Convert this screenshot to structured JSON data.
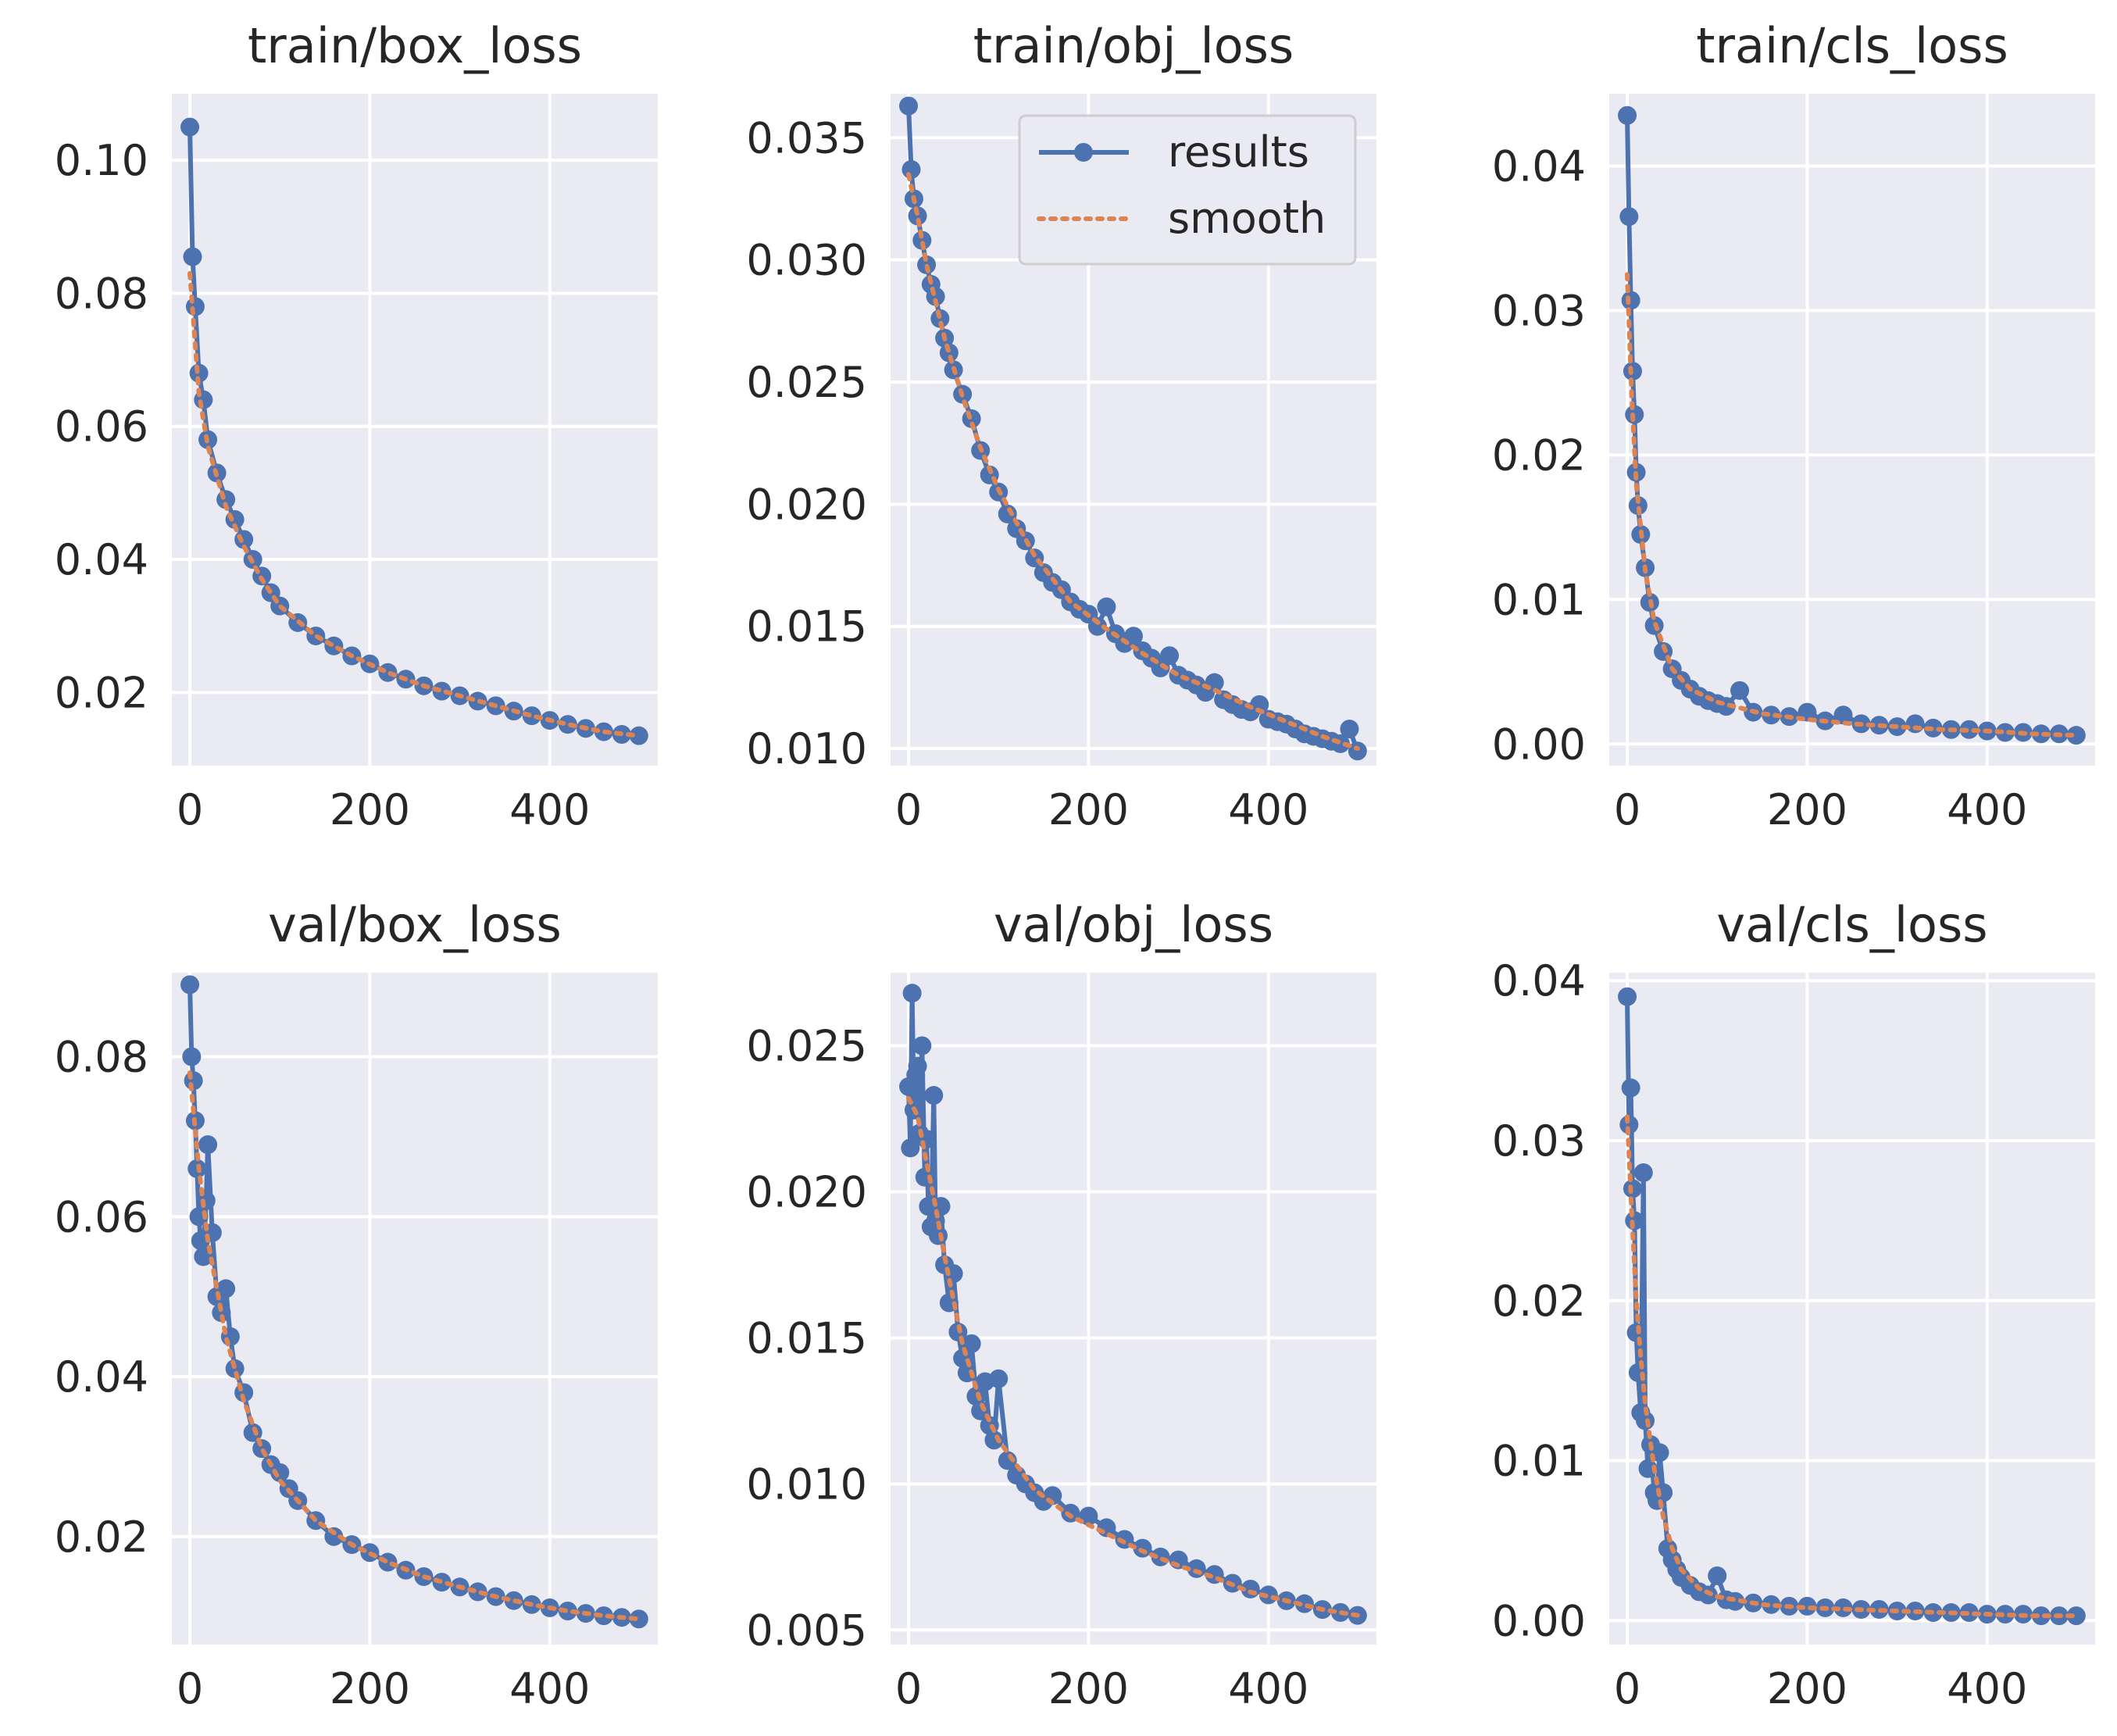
{
  "figure": {
    "colors": {
      "results": "#4c72b0",
      "smooth": "#dd8452",
      "axes_bg": "#eaeaf2",
      "grid": "#ffffff"
    },
    "legend": {
      "entries": [
        "results",
        "smooth"
      ],
      "placement": "upper-right",
      "panel": "train/obj_loss"
    }
  },
  "chart_data": [
    {
      "type": "line",
      "title": "train/box_loss",
      "xlabel": "",
      "ylabel": "",
      "xlim": [
        -20,
        520
      ],
      "ylim": [
        0.009,
        0.11
      ],
      "xticks": [
        0,
        200,
        400
      ],
      "xtick_labels": [
        "0",
        "200",
        "400"
      ],
      "yticks": [
        0.02,
        0.04,
        0.06,
        0.08,
        0.1
      ],
      "ytick_labels": [
        "0.02",
        "0.04",
        "0.06",
        "0.08",
        "0.10"
      ],
      "series": [
        {
          "name": "results",
          "x": [
            0,
            3,
            6,
            10,
            15,
            20,
            30,
            40,
            50,
            60,
            70,
            80,
            90,
            100,
            120,
            140,
            160,
            180,
            200,
            220,
            240,
            260,
            280,
            300,
            320,
            340,
            360,
            380,
            400,
            420,
            440,
            460,
            480,
            499
          ],
          "y": [
            0.105,
            0.0855,
            0.078,
            0.068,
            0.064,
            0.058,
            0.053,
            0.049,
            0.046,
            0.043,
            0.04,
            0.0375,
            0.035,
            0.033,
            0.0305,
            0.0285,
            0.027,
            0.0255,
            0.0243,
            0.023,
            0.022,
            0.021,
            0.0202,
            0.0195,
            0.0187,
            0.018,
            0.0172,
            0.0165,
            0.0158,
            0.0152,
            0.0146,
            0.0141,
            0.0137,
            0.0135
          ]
        },
        {
          "name": "smooth",
          "x": [
            0,
            10,
            20,
            40,
            60,
            80,
            100,
            140,
            180,
            220,
            260,
            300,
            340,
            380,
            420,
            460,
            499
          ],
          "y": [
            0.083,
            0.065,
            0.057,
            0.048,
            0.042,
            0.037,
            0.033,
            0.0285,
            0.0255,
            0.023,
            0.021,
            0.0195,
            0.018,
            0.0165,
            0.0152,
            0.0141,
            0.0135
          ]
        }
      ]
    },
    {
      "type": "line",
      "title": "train/obj_loss",
      "xlabel": "",
      "ylabel": "",
      "xlim": [
        -20,
        520
      ],
      "ylim": [
        0.0093,
        0.0368
      ],
      "xticks": [
        0,
        200,
        400
      ],
      "xtick_labels": [
        "0",
        "200",
        "400"
      ],
      "yticks": [
        0.01,
        0.015,
        0.02,
        0.025,
        0.03,
        0.035
      ],
      "ytick_labels": [
        "0.010",
        "0.015",
        "0.020",
        "0.025",
        "0.030",
        "0.035"
      ],
      "series": [
        {
          "name": "results",
          "x": [
            0,
            3,
            6,
            10,
            15,
            20,
            25,
            30,
            35,
            40,
            45,
            50,
            60,
            70,
            80,
            90,
            100,
            110,
            120,
            130,
            140,
            150,
            160,
            170,
            180,
            190,
            200,
            210,
            220,
            230,
            240,
            250,
            260,
            270,
            280,
            290,
            300,
            310,
            320,
            330,
            340,
            350,
            360,
            370,
            380,
            390,
            400,
            410,
            420,
            430,
            440,
            450,
            460,
            470,
            480,
            490,
            499
          ],
          "y": [
            0.0363,
            0.0337,
            0.0325,
            0.0318,
            0.0308,
            0.0298,
            0.029,
            0.0285,
            0.0276,
            0.0268,
            0.0262,
            0.0255,
            0.0245,
            0.0235,
            0.0222,
            0.0212,
            0.0205,
            0.0196,
            0.019,
            0.0185,
            0.0178,
            0.0172,
            0.0168,
            0.0165,
            0.016,
            0.0157,
            0.0155,
            0.015,
            0.0158,
            0.0147,
            0.0143,
            0.0146,
            0.014,
            0.0137,
            0.0133,
            0.0138,
            0.013,
            0.0128,
            0.0126,
            0.0123,
            0.0127,
            0.012,
            0.0118,
            0.0116,
            0.0115,
            0.0118,
            0.0112,
            0.0111,
            0.011,
            0.0108,
            0.0106,
            0.0105,
            0.0104,
            0.0103,
            0.0102,
            0.0108,
            0.0099
          ]
        },
        {
          "name": "smooth",
          "x": [
            0,
            10,
            20,
            40,
            60,
            80,
            100,
            140,
            180,
            220,
            260,
            300,
            340,
            380,
            420,
            460,
            499
          ],
          "y": [
            0.0335,
            0.0318,
            0.0298,
            0.0268,
            0.0244,
            0.0223,
            0.0206,
            0.0179,
            0.016,
            0.0149,
            0.0139,
            0.013,
            0.0124,
            0.0117,
            0.0111,
            0.0105,
            0.01
          ]
        }
      ]
    },
    {
      "type": "line",
      "title": "train/cls_loss",
      "xlabel": "",
      "ylabel": "",
      "xlim": [
        -20,
        520
      ],
      "ylim": [
        -0.0015,
        0.045
      ],
      "xticks": [
        0,
        200,
        400
      ],
      "xtick_labels": [
        "0",
        "200",
        "400"
      ],
      "yticks": [
        0,
        0.01,
        0.02,
        0.03,
        0.04
      ],
      "ytick_labels": [
        "0.00",
        "0.01",
        "0.02",
        "0.03",
        "0.04"
      ],
      "series": [
        {
          "name": "results",
          "x": [
            0,
            2,
            4,
            6,
            8,
            10,
            12,
            15,
            20,
            25,
            30,
            40,
            50,
            60,
            70,
            80,
            90,
            100,
            110,
            125,
            140,
            160,
            180,
            200,
            220,
            240,
            260,
            280,
            300,
            320,
            340,
            360,
            380,
            400,
            420,
            440,
            460,
            480,
            499
          ],
          "y": [
            0.0435,
            0.0365,
            0.0307,
            0.0258,
            0.0228,
            0.0188,
            0.0165,
            0.0145,
            0.0122,
            0.0098,
            0.0082,
            0.0064,
            0.0052,
            0.0044,
            0.0038,
            0.0033,
            0.003,
            0.0028,
            0.0026,
            0.0037,
            0.0022,
            0.002,
            0.0019,
            0.0022,
            0.0016,
            0.002,
            0.0014,
            0.0013,
            0.0012,
            0.0014,
            0.0011,
            0.001,
            0.001,
            0.0009,
            0.0008,
            0.0008,
            0.0007,
            0.0007,
            0.0006
          ]
        },
        {
          "name": "smooth",
          "x": [
            0,
            5,
            10,
            20,
            30,
            50,
            70,
            100,
            150,
            200,
            250,
            300,
            350,
            400,
            450,
            499
          ],
          "y": [
            0.0325,
            0.024,
            0.018,
            0.012,
            0.0085,
            0.0052,
            0.0038,
            0.0029,
            0.0021,
            0.0017,
            0.0014,
            0.0012,
            0.001,
            0.0009,
            0.0007,
            0.0006
          ]
        }
      ]
    },
    {
      "type": "line",
      "title": "val/box_loss",
      "xlabel": "",
      "ylabel": "",
      "xlim": [
        -20,
        520
      ],
      "ylim": [
        0.0065,
        0.0905
      ],
      "xticks": [
        0,
        200,
        400
      ],
      "xtick_labels": [
        "0",
        "200",
        "400"
      ],
      "yticks": [
        0.02,
        0.04,
        0.06,
        0.08
      ],
      "ytick_labels": [
        "0.02",
        "0.04",
        "0.06",
        "0.08"
      ],
      "series": [
        {
          "name": "results",
          "x": [
            0,
            2,
            4,
            6,
            8,
            10,
            12,
            15,
            18,
            20,
            25,
            30,
            35,
            40,
            45,
            50,
            60,
            70,
            80,
            90,
            100,
            110,
            120,
            140,
            160,
            180,
            200,
            220,
            240,
            260,
            280,
            300,
            320,
            340,
            360,
            380,
            400,
            420,
            440,
            460,
            480,
            499
          ],
          "y": [
            0.089,
            0.08,
            0.077,
            0.072,
            0.066,
            0.06,
            0.057,
            0.055,
            0.062,
            0.069,
            0.058,
            0.05,
            0.048,
            0.051,
            0.045,
            0.041,
            0.038,
            0.033,
            0.031,
            0.029,
            0.028,
            0.026,
            0.0245,
            0.022,
            0.02,
            0.019,
            0.018,
            0.0168,
            0.0158,
            0.015,
            0.0143,
            0.0137,
            0.0131,
            0.0125,
            0.012,
            0.0115,
            0.0111,
            0.0107,
            0.0104,
            0.0101,
            0.0099,
            0.0097
          ]
        },
        {
          "name": "smooth",
          "x": [
            0,
            10,
            20,
            30,
            40,
            60,
            80,
            100,
            140,
            180,
            220,
            260,
            300,
            340,
            380,
            420,
            460,
            499
          ],
          "y": [
            0.078,
            0.066,
            0.057,
            0.051,
            0.045,
            0.037,
            0.031,
            0.027,
            0.022,
            0.019,
            0.0168,
            0.015,
            0.0137,
            0.0125,
            0.0115,
            0.0107,
            0.0101,
            0.0097
          ]
        }
      ]
    },
    {
      "type": "line",
      "title": "val/obj_loss",
      "xlabel": "",
      "ylabel": "",
      "xlim": [
        -20,
        520
      ],
      "ylim": [
        0.0045,
        0.0275
      ],
      "xticks": [
        0,
        200,
        400
      ],
      "xtick_labels": [
        "0",
        "200",
        "400"
      ],
      "yticks": [
        0.005,
        0.01,
        0.015,
        0.02,
        0.025
      ],
      "ytick_labels": [
        "0.005",
        "0.010",
        "0.015",
        "0.020",
        "0.025"
      ],
      "series": [
        {
          "name": "results",
          "x": [
            0,
            2,
            4,
            6,
            8,
            10,
            12,
            15,
            18,
            20,
            22,
            25,
            28,
            30,
            33,
            36,
            40,
            45,
            50,
            55,
            60,
            65,
            70,
            75,
            80,
            85,
            90,
            95,
            100,
            110,
            120,
            130,
            140,
            150,
            160,
            180,
            200,
            220,
            240,
            260,
            280,
            300,
            320,
            340,
            360,
            380,
            400,
            420,
            440,
            460,
            480,
            499
          ],
          "y": [
            0.0236,
            0.0215,
            0.0268,
            0.0228,
            0.024,
            0.0243,
            0.022,
            0.025,
            0.0205,
            0.0218,
            0.0195,
            0.0188,
            0.0233,
            0.019,
            0.0185,
            0.0195,
            0.0175,
            0.0162,
            0.0172,
            0.0152,
            0.0143,
            0.0138,
            0.0148,
            0.013,
            0.0125,
            0.0135,
            0.012,
            0.0115,
            0.0136,
            0.0108,
            0.0103,
            0.01,
            0.0097,
            0.0094,
            0.0096,
            0.009,
            0.0089,
            0.0085,
            0.0081,
            0.0078,
            0.0075,
            0.0074,
            0.0071,
            0.0069,
            0.0066,
            0.0064,
            0.0062,
            0.006,
            0.0059,
            0.0057,
            0.0056,
            0.0055
          ]
        },
        {
          "name": "smooth",
          "x": [
            0,
            10,
            20,
            30,
            40,
            60,
            80,
            100,
            140,
            180,
            220,
            260,
            300,
            340,
            380,
            420,
            460,
            499
          ],
          "y": [
            0.0232,
            0.0226,
            0.021,
            0.0195,
            0.0178,
            0.0148,
            0.0128,
            0.0115,
            0.0098,
            0.0089,
            0.0083,
            0.0077,
            0.0072,
            0.0068,
            0.0063,
            0.006,
            0.0057,
            0.0055
          ]
        }
      ]
    },
    {
      "type": "line",
      "title": "val/cls_loss",
      "xlabel": "",
      "ylabel": "",
      "xlim": [
        -20,
        520
      ],
      "ylim": [
        -0.0015,
        0.0405
      ],
      "xticks": [
        0,
        200,
        400
      ],
      "xtick_labels": [
        "0",
        "200",
        "400"
      ],
      "yticks": [
        0,
        0.01,
        0.02,
        0.03,
        0.04
      ],
      "ytick_labels": [
        "0.00",
        "0.01",
        "0.02",
        "0.03",
        "0.04"
      ],
      "series": [
        {
          "name": "results",
          "x": [
            0,
            2,
            4,
            6,
            8,
            10,
            12,
            15,
            18,
            20,
            23,
            26,
            30,
            33,
            36,
            40,
            45,
            50,
            55,
            60,
            70,
            80,
            90,
            100,
            110,
            120,
            140,
            160,
            180,
            200,
            220,
            240,
            260,
            280,
            300,
            320,
            340,
            360,
            380,
            400,
            420,
            440,
            460,
            480,
            499
          ],
          "y": [
            0.039,
            0.031,
            0.0333,
            0.027,
            0.025,
            0.018,
            0.0155,
            0.013,
            0.028,
            0.0125,
            0.0095,
            0.011,
            0.008,
            0.0075,
            0.0105,
            0.008,
            0.0045,
            0.0038,
            0.0032,
            0.0027,
            0.0022,
            0.0018,
            0.0016,
            0.0028,
            0.0013,
            0.0012,
            0.0011,
            0.001,
            0.0009,
            0.0009,
            0.0008,
            0.0008,
            0.0007,
            0.0007,
            0.0006,
            0.0006,
            0.0005,
            0.0005,
            0.0005,
            0.0004,
            0.0004,
            0.0004,
            0.0003,
            0.0003,
            0.0003
          ]
        },
        {
          "name": "smooth",
          "x": [
            0,
            5,
            10,
            15,
            20,
            30,
            40,
            50,
            60,
            80,
            100,
            150,
            200,
            250,
            300,
            350,
            400,
            450,
            499
          ],
          "y": [
            0.0315,
            0.0255,
            0.02,
            0.0165,
            0.0135,
            0.0095,
            0.0065,
            0.0045,
            0.0032,
            0.002,
            0.0015,
            0.001,
            0.0008,
            0.0007,
            0.0006,
            0.0005,
            0.0004,
            0.0003,
            0.0003
          ]
        }
      ]
    }
  ]
}
